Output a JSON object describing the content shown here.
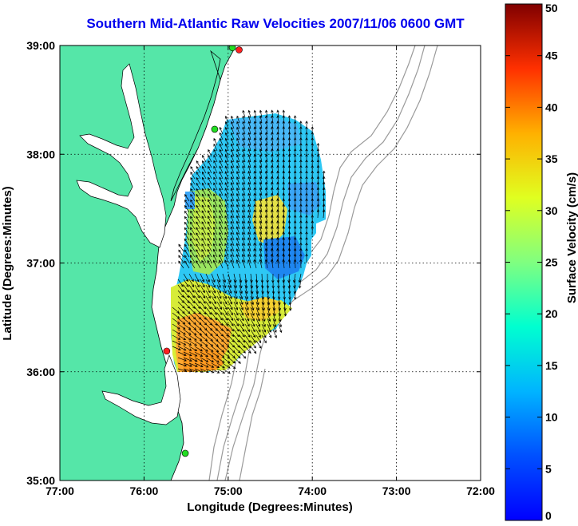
{
  "title": "Southern Mid-Atlantic Raw Velocities 2007/11/06 0600 GMT",
  "x_axis": {
    "label": "Longitude (Degrees:Minutes)",
    "ticks": [
      "77:00",
      "76:00",
      "75:00",
      "74:00",
      "73:00",
      "72:00"
    ]
  },
  "y_axis": {
    "label": "Latitude (Degrees:Minutes)",
    "ticks": [
      "39:00",
      "38:00",
      "37:00",
      "36:00",
      "35:00"
    ]
  },
  "colorbar": {
    "label": "Surface Velocity (cm/s)",
    "ticks": [
      "0",
      "5",
      "10",
      "15",
      "20",
      "25",
      "30",
      "35",
      "40",
      "45",
      "50"
    ],
    "range": [
      0,
      50
    ],
    "colormap": "jet"
  },
  "map": {
    "lon_range": [
      -77,
      -72
    ],
    "lat_range": [
      35,
      39
    ],
    "land_color": "#55e6a8",
    "grid": "dotted",
    "stations": [
      {
        "lon": -74.87,
        "lat": 38.96,
        "color": "#ff2020"
      },
      {
        "lon": -74.95,
        "lat": 38.98,
        "color": "#22dd22"
      },
      {
        "lon": -75.16,
        "lat": 38.23,
        "color": "#22dd22"
      },
      {
        "lon": -75.73,
        "lat": 36.19,
        "color": "#ff2020"
      },
      {
        "lon": -75.51,
        "lat": 35.25,
        "color": "#22dd22"
      }
    ]
  }
}
